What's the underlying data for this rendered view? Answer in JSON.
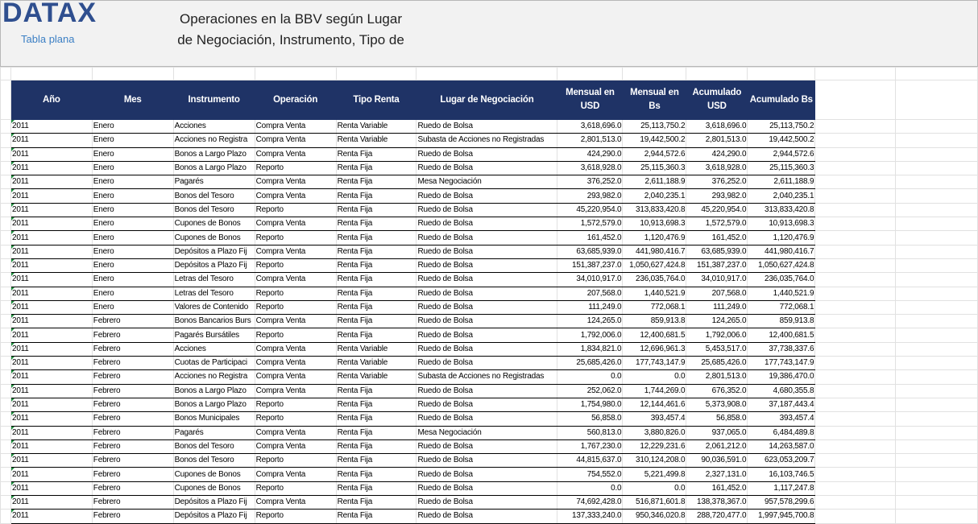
{
  "header": {
    "logo": "DATAX",
    "subtitle": "Tabla plana",
    "title": [
      "Operaciones en la BBV según Lugar",
      "de Negociación, Instrumento, Tipo de"
    ]
  },
  "table": {
    "columns": [
      "Año",
      "Mes",
      "Instrumento",
      "Operación",
      "Tipo Renta",
      "Lugar de Negociación",
      "Mensual en USD",
      "Mensual en Bs",
      "Acumulado USD",
      "Acumulado Bs"
    ],
    "rows": [
      [
        "2011",
        "Enero",
        "Acciones",
        "Compra Venta",
        "Renta Variable",
        "Ruedo de Bolsa",
        "3,618,696.0",
        "25,113,750.2",
        "3,618,696.0",
        "25,113,750.2"
      ],
      [
        "2011",
        "Enero",
        "Acciones no Registra",
        "Compra Venta",
        "Renta Variable",
        "Subasta de Acciones no Registradas",
        "2,801,513.0",
        "19,442,500.2",
        "2,801,513.0",
        "19,442,500.2"
      ],
      [
        "2011",
        "Enero",
        "Bonos a Largo Plazo",
        "Compra Venta",
        "Renta Fija",
        "Ruedo de Bolsa",
        "424,290.0",
        "2,944,572.6",
        "424,290.0",
        "2,944,572.6"
      ],
      [
        "2011",
        "Enero",
        "Bonos a Largo Plazo",
        "Reporto",
        "Renta Fija",
        "Ruedo de Bolsa",
        "3,618,928.0",
        "25,115,360.3",
        "3,618,928.0",
        "25,115,360.3"
      ],
      [
        "2011",
        "Enero",
        "Pagarés",
        "Compra Venta",
        "Renta Fija",
        "Mesa Negociación",
        "376,252.0",
        "2,611,188.9",
        "376,252.0",
        "2,611,188.9"
      ],
      [
        "2011",
        "Enero",
        "Bonos del Tesoro",
        "Compra Venta",
        "Renta Fija",
        "Ruedo de Bolsa",
        "293,982.0",
        "2,040,235.1",
        "293,982.0",
        "2,040,235.1"
      ],
      [
        "2011",
        "Enero",
        "Bonos del Tesoro",
        "Reporto",
        "Renta Fija",
        "Ruedo de Bolsa",
        "45,220,954.0",
        "313,833,420.8",
        "45,220,954.0",
        "313,833,420.8"
      ],
      [
        "2011",
        "Enero",
        "Cupones de Bonos",
        "Compra Venta",
        "Renta Fija",
        "Ruedo de Bolsa",
        "1,572,579.0",
        "10,913,698.3",
        "1,572,579.0",
        "10,913,698.3"
      ],
      [
        "2011",
        "Enero",
        "Cupones de Bonos",
        "Reporto",
        "Renta Fija",
        "Ruedo de Bolsa",
        "161,452.0",
        "1,120,476.9",
        "161,452.0",
        "1,120,476.9"
      ],
      [
        "2011",
        "Enero",
        "Depósitos a Plazo Fij",
        "Compra Venta",
        "Renta Fija",
        "Ruedo de Bolsa",
        "63,685,939.0",
        "441,980,416.7",
        "63,685,939.0",
        "441,980,416.7"
      ],
      [
        "2011",
        "Enero",
        "Depósitos a Plazo Fij",
        "Reporto",
        "Renta Fija",
        "Ruedo de Bolsa",
        "151,387,237.0",
        "1,050,627,424.8",
        "151,387,237.0",
        "1,050,627,424.8"
      ],
      [
        "2011",
        "Enero",
        "Letras del Tesoro",
        "Compra Venta",
        "Renta Fija",
        "Ruedo de Bolsa",
        "34,010,917.0",
        "236,035,764.0",
        "34,010,917.0",
        "236,035,764.0"
      ],
      [
        "2011",
        "Enero",
        "Letras del Tesoro",
        "Reporto",
        "Renta Fija",
        "Ruedo de Bolsa",
        "207,568.0",
        "1,440,521.9",
        "207,568.0",
        "1,440,521.9"
      ],
      [
        "2011",
        "Enero",
        "Valores de Contenido",
        "Reporto",
        "Renta Fija",
        "Ruedo de Bolsa",
        "111,249.0",
        "772,068.1",
        "111,249.0",
        "772,068.1"
      ],
      [
        "2011",
        "Febrero",
        "Bonos Bancarios Burs",
        "Compra Venta",
        "Renta Fija",
        "Ruedo de Bolsa",
        "124,265.0",
        "859,913.8",
        "124,265.0",
        "859,913.8"
      ],
      [
        "2011",
        "Febrero",
        "Pagarés Bursátiles",
        "Reporto",
        "Renta Fija",
        "Ruedo de Bolsa",
        "1,792,006.0",
        "12,400,681.5",
        "1,792,006.0",
        "12,400,681.5"
      ],
      [
        "2011",
        "Febrero",
        "Acciones",
        "Compra Venta",
        "Renta Variable",
        "Ruedo de Bolsa",
        "1,834,821.0",
        "12,696,961.3",
        "5,453,517.0",
        "37,738,337.6"
      ],
      [
        "2011",
        "Febrero",
        "Cuotas de Participaci",
        "Compra Venta",
        "Renta Variable",
        "Ruedo de Bolsa",
        "25,685,426.0",
        "177,743,147.9",
        "25,685,426.0",
        "177,743,147.9"
      ],
      [
        "2011",
        "Febrero",
        "Acciones no Registra",
        "Compra Venta",
        "Renta Variable",
        "Subasta de Acciones no Registradas",
        "0.0",
        "0.0",
        "2,801,513.0",
        "19,386,470.0"
      ],
      [
        "2011",
        "Febrero",
        "Bonos a Largo Plazo",
        "Compra Venta",
        "Renta Fija",
        "Ruedo de Bolsa",
        "252,062.0",
        "1,744,269.0",
        "676,352.0",
        "4,680,355.8"
      ],
      [
        "2011",
        "Febrero",
        "Bonos a Largo Plazo",
        "Reporto",
        "Renta Fija",
        "Ruedo de Bolsa",
        "1,754,980.0",
        "12,144,461.6",
        "5,373,908.0",
        "37,187,443.4"
      ],
      [
        "2011",
        "Febrero",
        "Bonos Municipales",
        "Reporto",
        "Renta Fija",
        "Ruedo de Bolsa",
        "56,858.0",
        "393,457.4",
        "56,858.0",
        "393,457.4"
      ],
      [
        "2011",
        "Febrero",
        "Pagarés",
        "Compra Venta",
        "Renta Fija",
        "Mesa Negociación",
        "560,813.0",
        "3,880,826.0",
        "937,065.0",
        "6,484,489.8"
      ],
      [
        "2011",
        "Febrero",
        "Bonos del Tesoro",
        "Compra Venta",
        "Renta Fija",
        "Ruedo de Bolsa",
        "1,767,230.0",
        "12,229,231.6",
        "2,061,212.0",
        "14,263,587.0"
      ],
      [
        "2011",
        "Febrero",
        "Bonos del Tesoro",
        "Reporto",
        "Renta Fija",
        "Ruedo de Bolsa",
        "44,815,637.0",
        "310,124,208.0",
        "90,036,591.0",
        "623,053,209.7"
      ],
      [
        "2011",
        "Febrero",
        "Cupones de Bonos",
        "Compra Venta",
        "Renta Fija",
        "Ruedo de Bolsa",
        "754,552.0",
        "5,221,499.8",
        "2,327,131.0",
        "16,103,746.5"
      ],
      [
        "2011",
        "Febrero",
        "Cupones de Bonos",
        "Reporto",
        "Renta Fija",
        "Ruedo de Bolsa",
        "0.0",
        "0.0",
        "161,452.0",
        "1,117,247.8"
      ],
      [
        "2011",
        "Febrero",
        "Depósitos a Plazo Fij",
        "Compra Venta",
        "Renta Fija",
        "Ruedo de Bolsa",
        "74,692,428.0",
        "516,871,601.8",
        "138,378,367.0",
        "957,578,299.6"
      ],
      [
        "2011",
        "Febrero",
        "Depósitos a Plazo Fij",
        "Reporto",
        "Renta Fija",
        "Ruedo de Bolsa",
        "137,333,240.0",
        "950,346,020.8",
        "288,720,477.0",
        "1,997,945,700.8"
      ]
    ]
  }
}
